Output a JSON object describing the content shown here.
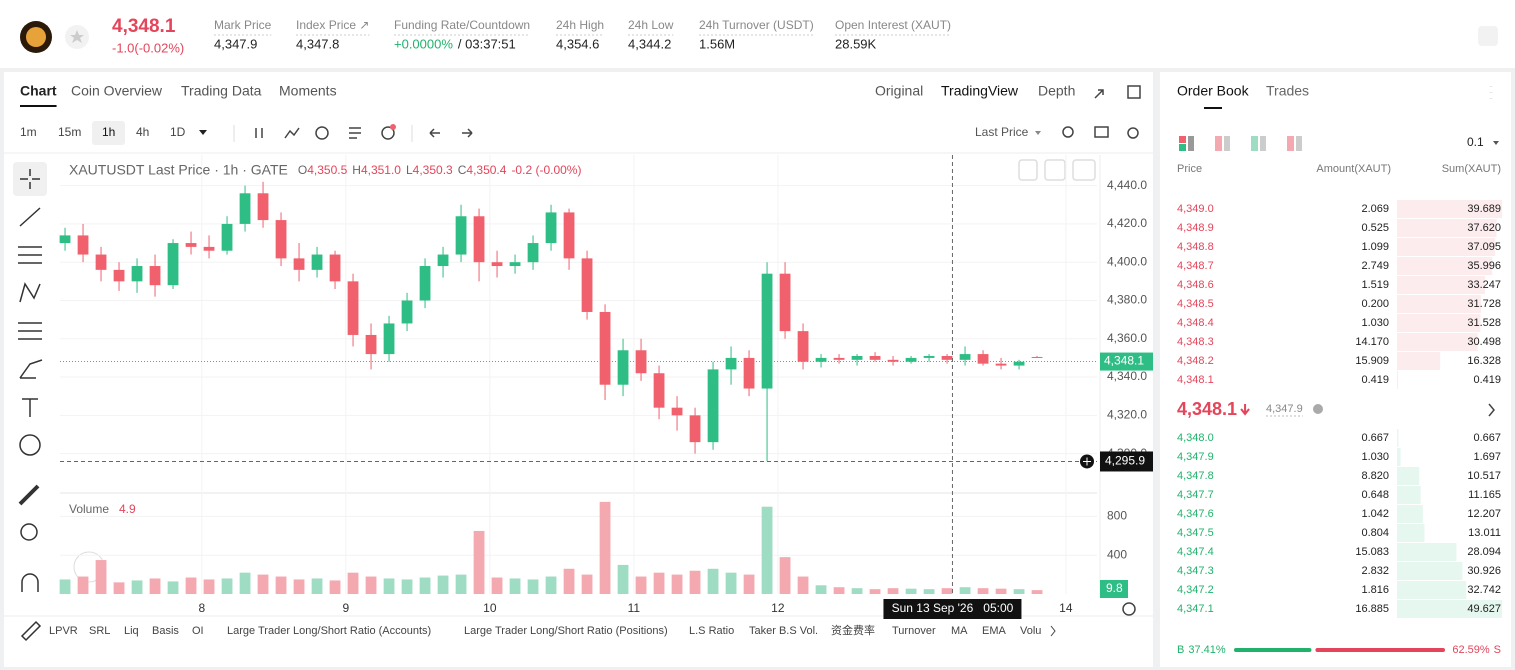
{
  "header": {
    "price": "4,348.1",
    "change": "-1.0(-0.02%)",
    "stats": [
      {
        "label": "Mark Price",
        "value": "4,347.9"
      },
      {
        "label": "Index Price ↗",
        "value": "4,347.8"
      },
      {
        "label": "Funding Rate/Countdown",
        "value": "+0.0000%",
        "extra": "/ 03:37:51"
      },
      {
        "label": "24h High",
        "value": "4,354.6"
      },
      {
        "label": "24h Low",
        "value": "4,344.2"
      },
      {
        "label": "24h Turnover (USDT)",
        "value": "1.56M"
      },
      {
        "label": "Open Interest (XAUT)",
        "value": "28.59K"
      }
    ]
  },
  "chart_tabs": [
    "Chart",
    "Coin Overview",
    "Trading Data",
    "Moments"
  ],
  "view_tabs": [
    "Original",
    "TradingView",
    "Depth"
  ],
  "intervals": [
    "1m",
    "15m",
    "1h",
    "4h",
    "1D"
  ],
  "price_source": "Last Price",
  "chart_data": {
    "type": "candlestick",
    "title": "XAUTUSDT Last Price · 1h · GATE",
    "legend": [
      {
        "key": "O",
        "value": "4,350.5"
      },
      {
        "key": "H",
        "value": "4,351.0"
      },
      {
        "key": "L",
        "value": "4,350.3"
      },
      {
        "key": "C",
        "value": "4,350.4"
      }
    ],
    "legend_change": "-0.2 (-0.00%)",
    "ohlc": [
      [
        4410,
        4418,
        4406,
        4414
      ],
      [
        4414,
        4420,
        4400,
        4404
      ],
      [
        4404,
        4408,
        4390,
        4396
      ],
      [
        4396,
        4400,
        4385,
        4390
      ],
      [
        4390,
        4402,
        4384,
        4398
      ],
      [
        4398,
        4404,
        4382,
        4388
      ],
      [
        4388,
        4412,
        4386,
        4410
      ],
      [
        4410,
        4416,
        4404,
        4408
      ],
      [
        4408,
        4414,
        4402,
        4406
      ],
      [
        4406,
        4424,
        4404,
        4420
      ],
      [
        4420,
        4440,
        4416,
        4436
      ],
      [
        4436,
        4442,
        4418,
        4422
      ],
      [
        4422,
        4426,
        4398,
        4402
      ],
      [
        4402,
        4410,
        4390,
        4396
      ],
      [
        4396,
        4408,
        4392,
        4404
      ],
      [
        4404,
        4406,
        4386,
        4390
      ],
      [
        4390,
        4394,
        4356,
        4362
      ],
      [
        4362,
        4368,
        4344,
        4352
      ],
      [
        4352,
        4372,
        4348,
        4368
      ],
      [
        4368,
        4384,
        4364,
        4380
      ],
      [
        4380,
        4402,
        4376,
        4398
      ],
      [
        4398,
        4408,
        4392,
        4404
      ],
      [
        4404,
        4430,
        4400,
        4424
      ],
      [
        4424,
        4428,
        4390,
        4400
      ],
      [
        4400,
        4406,
        4392,
        4398
      ],
      [
        4398,
        4404,
        4394,
        4400
      ],
      [
        4400,
        4414,
        4396,
        4410
      ],
      [
        4410,
        4430,
        4406,
        4426
      ],
      [
        4426,
        4428,
        4396,
        4402
      ],
      [
        4402,
        4406,
        4370,
        4374
      ],
      [
        4374,
        4378,
        4328,
        4336
      ],
      [
        4336,
        4360,
        4330,
        4354
      ],
      [
        4354,
        4360,
        4338,
        4342
      ],
      [
        4342,
        4346,
        4318,
        4324
      ],
      [
        4324,
        4330,
        4312,
        4320
      ],
      [
        4320,
        4324,
        4300,
        4306
      ],
      [
        4306,
        4348,
        4302,
        4344
      ],
      [
        4344,
        4356,
        4336,
        4350
      ],
      [
        4350,
        4354,
        4330,
        4334
      ],
      [
        4334,
        4400,
        4296,
        4394
      ],
      [
        4394,
        4400,
        4360,
        4364
      ],
      [
        4364,
        4368,
        4344,
        4348
      ],
      [
        4348,
        4352,
        4345,
        4350
      ],
      [
        4350,
        4352,
        4347,
        4349
      ],
      [
        4349,
        4352,
        4346,
        4351
      ],
      [
        4351,
        4353,
        4348,
        4349
      ],
      [
        4349,
        4351,
        4346,
        4348
      ],
      [
        4348,
        4351,
        4347,
        4350
      ],
      [
        4350,
        4352,
        4348,
        4351
      ],
      [
        4351,
        4352,
        4347,
        4349
      ],
      [
        4349,
        4356,
        4346,
        4352
      ],
      [
        4352,
        4354,
        4346,
        4347
      ],
      [
        4347,
        4350,
        4344,
        4346
      ],
      [
        4346,
        4349,
        4344,
        4348
      ],
      [
        4350.5,
        4351.0,
        4350.3,
        4350.4
      ]
    ],
    "volume": [
      150,
      180,
      350,
      120,
      140,
      160,
      130,
      170,
      150,
      160,
      220,
      200,
      180,
      150,
      160,
      140,
      220,
      180,
      160,
      150,
      170,
      190,
      200,
      650,
      170,
      160,
      150,
      180,
      260,
      200,
      950,
      300,
      180,
      220,
      200,
      240,
      260,
      220,
      200,
      900,
      380,
      180,
      90,
      70,
      60,
      50,
      60,
      55,
      50,
      60,
      70,
      60,
      55,
      50,
      40
    ],
    "ylim": [
      4281,
      4456
    ],
    "yticks": [
      {
        "value": 4300,
        "label": "4,300.0"
      },
      {
        "value": 4320,
        "label": "4,320.0"
      },
      {
        "value": 4340,
        "label": "4,340.0"
      },
      {
        "value": 4360,
        "label": "4,360.0"
      },
      {
        "value": 4380,
        "label": "4,380.0"
      },
      {
        "value": 4400,
        "label": "4,400.0"
      },
      {
        "value": 4420,
        "label": "4,420.0"
      },
      {
        "value": 4440,
        "label": "4,440.0"
      }
    ],
    "xlim": [
      -0.28,
      57.33
    ],
    "xticks": [
      {
        "value": 7.6,
        "label": "8"
      },
      {
        "value": 15.6,
        "label": "9"
      },
      {
        "value": 23.6,
        "label": "10"
      },
      {
        "value": 31.6,
        "label": "11"
      },
      {
        "value": 39.6,
        "label": "12"
      },
      {
        "value": 55.6,
        "label": "14"
      }
    ],
    "last_price": {
      "value": 4348.1,
      "label": "4,348.1"
    },
    "crosshair": {
      "x": 49.3,
      "price": {
        "value": 4295.9,
        "label": "4,295.9"
      },
      "time_label": "Sun 13 Sep '26   05:00"
    },
    "volume_title": "Volume",
    "volume_last": "4.9",
    "volume_ylim": [
      0,
      1000
    ],
    "volume_yticks": [
      400,
      800
    ],
    "volume_tag": {
      "value": 9.8,
      "label": "9.8"
    },
    "colors": {
      "up": "#2ebd85",
      "down": "#f0616d",
      "up_volume": "#9fdcc4",
      "down_volume": "#f4a9b1"
    }
  },
  "indicators": [
    "LPVR",
    "SRL",
    "Liq",
    "Basis",
    "OI",
    "Large Trader Long/Short Ratio (Accounts)",
    "Large Trader Long/Short Ratio (Positions)",
    "L.S Ratio",
    "Taker B.S Vol.",
    "资金费率",
    "Turnover",
    "MA",
    "EMA",
    "Volu"
  ],
  "order_book": {
    "tabs": [
      "Order Book",
      "Trades"
    ],
    "precision": "0.1",
    "columns": [
      "Price",
      "Amount(XAUT)",
      "Sum(XAUT)"
    ],
    "asks": {
      "prices": [
        "4,349.0",
        "4,348.9",
        "4,348.8",
        "4,348.7",
        "4,348.6",
        "4,348.5",
        "4,348.4",
        "4,348.3",
        "4,348.2",
        "4,348.1"
      ],
      "amounts": [
        "2.069",
        "0.525",
        "1.099",
        "2.749",
        "1.519",
        "0.200",
        "1.030",
        "14.170",
        "15.909",
        "0.419"
      ],
      "sums": [
        39.689,
        37.62,
        37.095,
        35.996,
        33.247,
        31.728,
        31.528,
        30.498,
        16.328,
        0.419
      ],
      "sum_labels": [
        "39.689",
        "37.620",
        "37.095",
        "35.996",
        "33.247",
        "31.728",
        "31.528",
        "30.498",
        "16.328",
        "0.419"
      ]
    },
    "mid": {
      "price": "4,348.1",
      "mark": "4,347.9"
    },
    "bids": {
      "prices": [
        "4,348.0",
        "4,347.9",
        "4,347.8",
        "4,347.7",
        "4,347.6",
        "4,347.5",
        "4,347.4",
        "4,347.3",
        "4,347.2",
        "4,347.1"
      ],
      "amounts": [
        "0.667",
        "1.030",
        "8.820",
        "0.648",
        "1.042",
        "0.804",
        "15.083",
        "2.832",
        "1.816",
        "16.885"
      ],
      "sums": [
        0.667,
        1.697,
        10.517,
        11.165,
        12.207,
        13.011,
        28.094,
        30.926,
        32.742,
        49.627
      ],
      "sum_labels": [
        "0.667",
        "1.697",
        "10.517",
        "11.165",
        "12.207",
        "13.011",
        "28.094",
        "30.926",
        "32.742",
        "49.627"
      ]
    },
    "ratio": {
      "names": [
        "B",
        "S"
      ],
      "values": [
        37.41,
        62.59
      ],
      "value_labels": [
        "37.41%",
        "62.59%"
      ]
    }
  }
}
